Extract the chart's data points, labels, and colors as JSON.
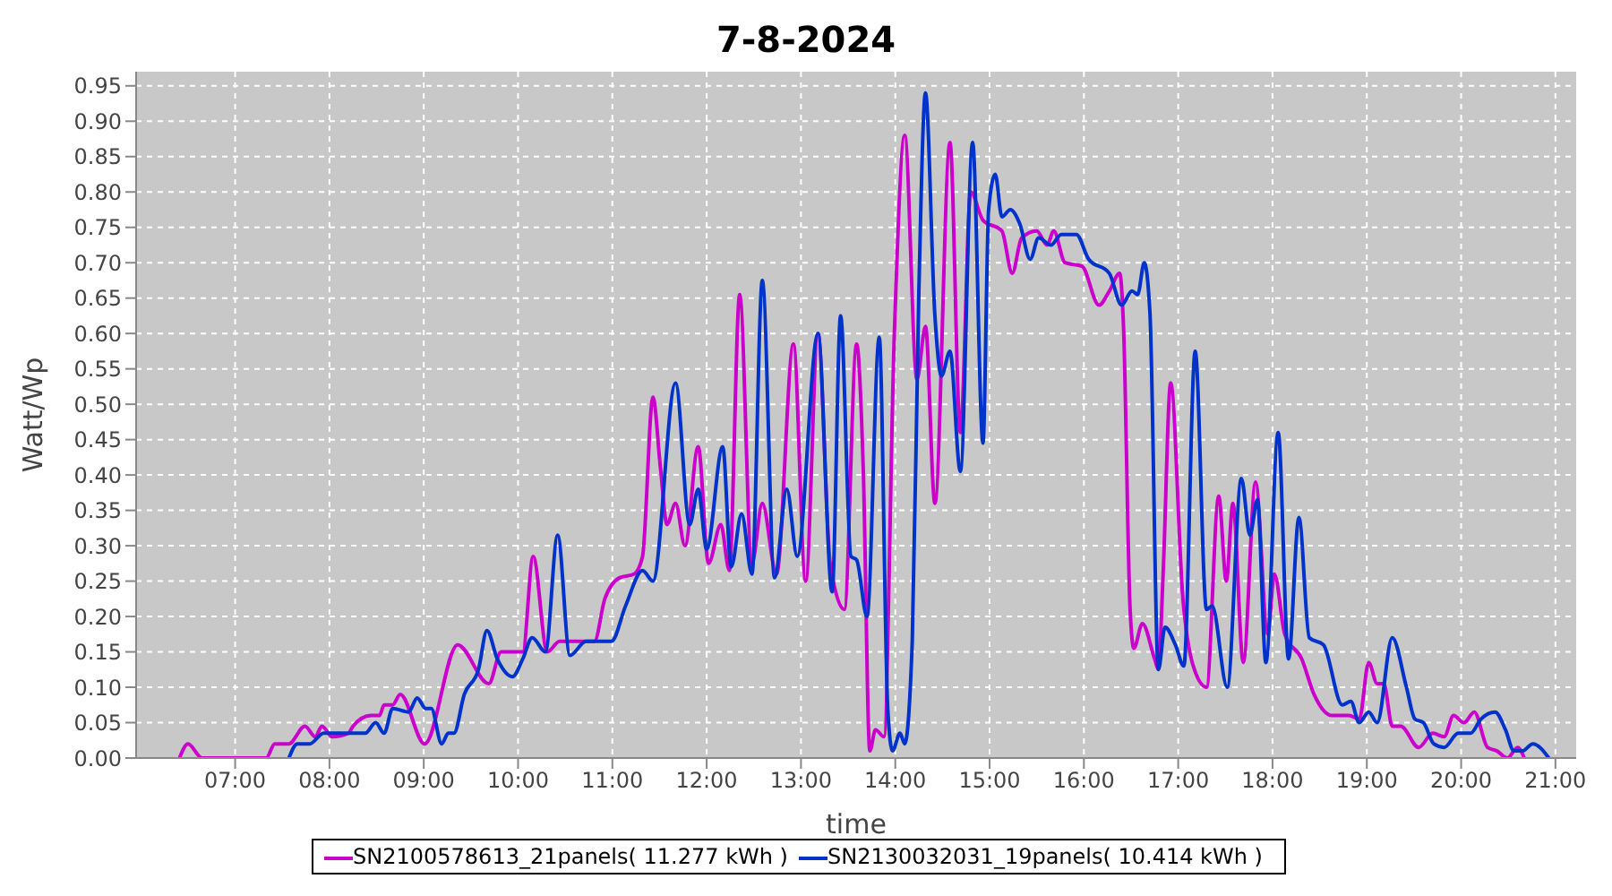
{
  "chart_data": {
    "type": "line",
    "title": "7-8-2024",
    "xlabel": "time",
    "ylabel": "Watt/Wp",
    "legend": "bottom",
    "grid": true,
    "line_style": "solid",
    "marker": "none",
    "xlim": [
      5.95,
      21.22
    ],
    "xticks": [
      {
        "value": 7,
        "label": "07:00"
      },
      {
        "value": 8,
        "label": "08:00"
      },
      {
        "value": 9,
        "label": "09:00"
      },
      {
        "value": 10,
        "label": "10:00"
      },
      {
        "value": 11,
        "label": "11:00"
      },
      {
        "value": 12,
        "label": "12:00"
      },
      {
        "value": 13,
        "label": "13:00"
      },
      {
        "value": 14,
        "label": "14:00"
      },
      {
        "value": 15,
        "label": "15:00"
      },
      {
        "value": 16,
        "label": "16:00"
      },
      {
        "value": 17,
        "label": "17:00"
      },
      {
        "value": 18,
        "label": "18:00"
      },
      {
        "value": 19,
        "label": "19:00"
      },
      {
        "value": 20,
        "label": "20:00"
      },
      {
        "value": 21,
        "label": "21:00"
      }
    ],
    "ylim": [
      0,
      0.97
    ],
    "yticks": [
      {
        "value": 0,
        "label": "0.00"
      },
      {
        "value": 0.05,
        "label": "0.05"
      },
      {
        "value": 0.1,
        "label": "0.10"
      },
      {
        "value": 0.15,
        "label": "0.15"
      },
      {
        "value": 0.2,
        "label": "0.20"
      },
      {
        "value": 0.25,
        "label": "0.25"
      },
      {
        "value": 0.3,
        "label": "0.30"
      },
      {
        "value": 0.35,
        "label": "0.35"
      },
      {
        "value": 0.4,
        "label": "0.40"
      },
      {
        "value": 0.45,
        "label": "0.45"
      },
      {
        "value": 0.5,
        "label": "0.50"
      },
      {
        "value": 0.55,
        "label": "0.55"
      },
      {
        "value": 0.6,
        "label": "0.60"
      },
      {
        "value": 0.65,
        "label": "0.65"
      },
      {
        "value": 0.7,
        "label": "0.70"
      },
      {
        "value": 0.75,
        "label": "0.75"
      },
      {
        "value": 0.8,
        "label": "0.80"
      },
      {
        "value": 0.85,
        "label": "0.85"
      },
      {
        "value": 0.9,
        "label": "0.90"
      },
      {
        "value": 0.95,
        "label": "0.95"
      }
    ],
    "series": [
      {
        "name": "SN2100578613_21panels( 11.277 kWh )",
        "color": "#cc00cc",
        "x": [
          6.41,
          6.5,
          6.65,
          7.33,
          7.42,
          7.57,
          7.74,
          7.85,
          7.92,
          8.03,
          8.2,
          8.25,
          8.44,
          8.53,
          8.58,
          8.67,
          8.75,
          9.01,
          9.36,
          9.69,
          9.82,
          10.05,
          10.16,
          10.31,
          10.44,
          10.81,
          10.92,
          11.08,
          11.23,
          11.32,
          11.43,
          11.51,
          11.58,
          11.67,
          11.77,
          11.91,
          12.02,
          12.15,
          12.24,
          12.35,
          12.48,
          12.59,
          12.74,
          12.92,
          13.05,
          13.18,
          13.31,
          13.46,
          13.59,
          13.66,
          13.73,
          13.79,
          13.88,
          13.99,
          14.1,
          14.23,
          14.32,
          14.42,
          14.58,
          14.69,
          14.8,
          14.93,
          15.13,
          15.24,
          15.34,
          15.5,
          15.61,
          15.68,
          15.8,
          15.98,
          16.16,
          16.27,
          16.38,
          16.42,
          16.49,
          16.53,
          16.62,
          16.75,
          16.79,
          16.84,
          16.92,
          17.05,
          17.16,
          17.3,
          17.43,
          17.51,
          17.58,
          17.69,
          17.82,
          17.95,
          18.02,
          18.13,
          18.31,
          18.44,
          18.63,
          18.81,
          18.92,
          19.02,
          19.11,
          19.18,
          19.27,
          19.36,
          19.55,
          19.7,
          19.82,
          19.92,
          20.03,
          20.14,
          20.28,
          20.38,
          20.49,
          20.6,
          20.67
        ],
        "values": [
          0,
          0.02,
          0,
          0,
          0.02,
          0.02,
          0.045,
          0.03,
          0.045,
          0.03,
          0.035,
          0.045,
          0.06,
          0.06,
          0.075,
          0.075,
          0.09,
          0.02,
          0.16,
          0.105,
          0.15,
          0.15,
          0.285,
          0.15,
          0.165,
          0.165,
          0.225,
          0.255,
          0.26,
          0.285,
          0.51,
          0.41,
          0.33,
          0.36,
          0.3,
          0.44,
          0.275,
          0.33,
          0.265,
          0.655,
          0.275,
          0.36,
          0.26,
          0.585,
          0.25,
          0.6,
          0.275,
          0.21,
          0.585,
          0.41,
          0.01,
          0.04,
          0.03,
          0.6,
          0.88,
          0.535,
          0.61,
          0.36,
          0.87,
          0.46,
          0.8,
          0.76,
          0.745,
          0.685,
          0.735,
          0.745,
          0.725,
          0.745,
          0.7,
          0.695,
          0.64,
          0.66,
          0.685,
          0.61,
          0.21,
          0.155,
          0.19,
          0.14,
          0.125,
          0.26,
          0.53,
          0.225,
          0.13,
          0.1,
          0.37,
          0.25,
          0.36,
          0.135,
          0.39,
          0.175,
          0.26,
          0.175,
          0.14,
          0.09,
          0.06,
          0.06,
          0.055,
          0.135,
          0.105,
          0.105,
          0.045,
          0.045,
          0.015,
          0.035,
          0.03,
          0.06,
          0.05,
          0.065,
          0.015,
          0.01,
          0,
          0.015,
          0
        ]
      },
      {
        "name": "SN2130032031_19panels( 10.414 kWh )",
        "color": "#0033cc",
        "x": [
          7.57,
          7.66,
          7.79,
          7.94,
          8.38,
          8.49,
          8.58,
          8.67,
          8.84,
          8.93,
          9.02,
          9.08,
          9.19,
          9.26,
          9.32,
          9.43,
          9.58,
          9.67,
          9.78,
          9.94,
          10.05,
          10.15,
          10.29,
          10.42,
          10.55,
          10.72,
          10.99,
          11.14,
          11.32,
          11.43,
          11.67,
          11.82,
          11.91,
          12.0,
          12.17,
          12.26,
          12.37,
          12.48,
          12.59,
          12.72,
          12.85,
          12.96,
          13.18,
          13.33,
          13.42,
          13.53,
          13.59,
          13.7,
          13.83,
          13.92,
          13.97,
          14.05,
          14.1,
          14.18,
          14.25,
          14.32,
          14.42,
          14.49,
          14.58,
          14.69,
          14.82,
          14.93,
          14.99,
          15.06,
          15.13,
          15.22,
          15.32,
          15.43,
          15.52,
          15.65,
          15.76,
          15.92,
          16.05,
          16.27,
          16.4,
          16.51,
          16.57,
          16.64,
          16.7,
          16.79,
          16.86,
          16.97,
          17.06,
          17.18,
          17.3,
          17.36,
          17.52,
          17.67,
          17.76,
          17.84,
          17.93,
          18.06,
          18.17,
          18.28,
          18.39,
          18.54,
          18.74,
          18.83,
          18.92,
          19.02,
          19.11,
          19.27,
          19.42,
          19.51,
          19.6,
          19.71,
          19.82,
          19.97,
          20.1,
          20.21,
          20.36,
          20.47,
          20.56,
          20.65,
          20.76,
          20.93
        ],
        "values": [
          0,
          0.02,
          0.02,
          0.035,
          0.035,
          0.05,
          0.035,
          0.07,
          0.065,
          0.085,
          0.07,
          0.07,
          0.02,
          0.035,
          0.035,
          0.09,
          0.125,
          0.18,
          0.14,
          0.115,
          0.14,
          0.17,
          0.15,
          0.315,
          0.145,
          0.165,
          0.165,
          0.215,
          0.265,
          0.25,
          0.53,
          0.33,
          0.38,
          0.295,
          0.44,
          0.27,
          0.345,
          0.26,
          0.675,
          0.255,
          0.38,
          0.285,
          0.6,
          0.235,
          0.625,
          0.285,
          0.28,
          0.2,
          0.595,
          0.07,
          0.01,
          0.035,
          0.02,
          0.165,
          0.66,
          0.94,
          0.625,
          0.54,
          0.575,
          0.405,
          0.87,
          0.445,
          0.775,
          0.825,
          0.765,
          0.775,
          0.755,
          0.705,
          0.735,
          0.725,
          0.74,
          0.74,
          0.705,
          0.685,
          0.64,
          0.66,
          0.655,
          0.7,
          0.63,
          0.125,
          0.185,
          0.16,
          0.13,
          0.575,
          0.21,
          0.215,
          0.1,
          0.395,
          0.315,
          0.365,
          0.135,
          0.46,
          0.14,
          0.34,
          0.17,
          0.16,
          0.075,
          0.08,
          0.05,
          0.065,
          0.05,
          0.17,
          0.1,
          0.055,
          0.05,
          0.02,
          0.015,
          0.035,
          0.035,
          0.055,
          0.065,
          0.04,
          0.01,
          0.01,
          0.02,
          0
        ]
      }
    ]
  }
}
